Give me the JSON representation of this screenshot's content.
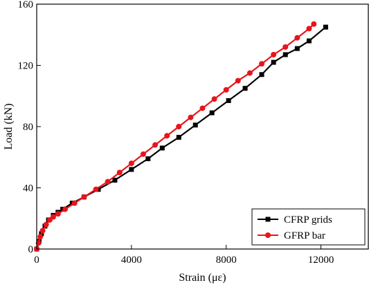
{
  "chart_data": {
    "type": "line",
    "title": "",
    "xlabel": "Strain (με)",
    "ylabel": "Load (kN)",
    "xlim": [
      0,
      14000
    ],
    "ylim": [
      0,
      160
    ],
    "xticks": [
      0,
      4000,
      8000,
      12000
    ],
    "yticks": [
      0,
      40,
      80,
      120,
      160
    ],
    "grid": false,
    "legend_position": "bottom-right",
    "series": [
      {
        "name": "CFRP grids",
        "color": "#000000",
        "marker": "square",
        "x": [
          0,
          100,
          200,
          350,
          500,
          700,
          900,
          1100,
          1500,
          2000,
          2600,
          3300,
          4000,
          4700,
          5300,
          6000,
          6700,
          7400,
          8100,
          8800,
          9500,
          10000,
          10500,
          11000,
          11500,
          12200
        ],
        "y": [
          0,
          5,
          10,
          15,
          19,
          22,
          24,
          26,
          30,
          34,
          39,
          45,
          52,
          59,
          66,
          73,
          81,
          89,
          97,
          105,
          114,
          122,
          127,
          131,
          136,
          145
        ]
      },
      {
        "name": "GFRP bar",
        "color": "#e8141b",
        "marker": "circle",
        "x": [
          0,
          80,
          150,
          250,
          400,
          550,
          700,
          900,
          1200,
          1600,
          2000,
          2500,
          3000,
          3500,
          4000,
          4500,
          5000,
          5500,
          6000,
          6500,
          7000,
          7500,
          8000,
          8500,
          9000,
          9500,
          10000,
          10500,
          11000,
          11500,
          11700
        ],
        "y": [
          0,
          4,
          8,
          12,
          16,
          19,
          21,
          23,
          26,
          30,
          34,
          39,
          44,
          50,
          56,
          62,
          68,
          74,
          80,
          86,
          92,
          98,
          104,
          110,
          115,
          121,
          127,
          132,
          138,
          144,
          147
        ]
      }
    ]
  }
}
